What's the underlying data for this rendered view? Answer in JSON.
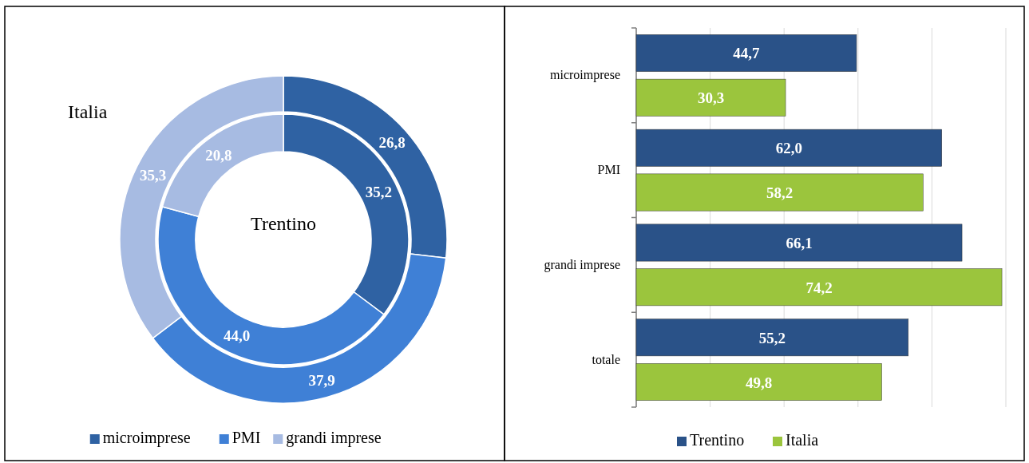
{
  "chart_data": [
    {
      "type": "donut",
      "categories": [
        "microimprese",
        "PMI",
        "grandi imprese"
      ],
      "colors": [
        "#2f62a3",
        "#3f80d6",
        "#a7bbe2"
      ],
      "legend": "bottom",
      "series": [
        {
          "name": "Italia",
          "values": [
            26.8,
            37.9,
            35.3
          ],
          "value_labels": [
            "26,8",
            "37,9",
            "35,3"
          ]
        },
        {
          "name": "Trentino",
          "values": [
            35.2,
            44.0,
            20.8
          ],
          "value_labels": [
            "35,2",
            "44,0",
            "20,8"
          ]
        }
      ]
    },
    {
      "type": "bar",
      "orientation": "horizontal",
      "categories": [
        "microimprese",
        "PMI",
        "grandi imprese",
        "totale"
      ],
      "xlim": [
        0,
        75
      ],
      "xticks": [
        {
          "value": 0,
          "label": null
        },
        {
          "value": 15,
          "label": null
        },
        {
          "value": 30,
          "label": null
        },
        {
          "value": 45,
          "label": null
        },
        {
          "value": 60,
          "label": null
        },
        {
          "value": 75,
          "label": null
        }
      ],
      "tick_labels": "y",
      "grid": "x",
      "legend": "bottom",
      "series": [
        {
          "name": "Trentino",
          "color": "#2a5288",
          "values": [
            44.7,
            62.0,
            66.1,
            55.2
          ],
          "value_labels": [
            "44,7",
            "62,0",
            "66,1",
            "55,2"
          ]
        },
        {
          "name": "Italia",
          "color": "#9bc53d",
          "values": [
            30.3,
            58.2,
            74.2,
            49.8
          ],
          "value_labels": [
            "30,3",
            "58,2",
            "74,2",
            "49,8"
          ]
        }
      ]
    }
  ]
}
